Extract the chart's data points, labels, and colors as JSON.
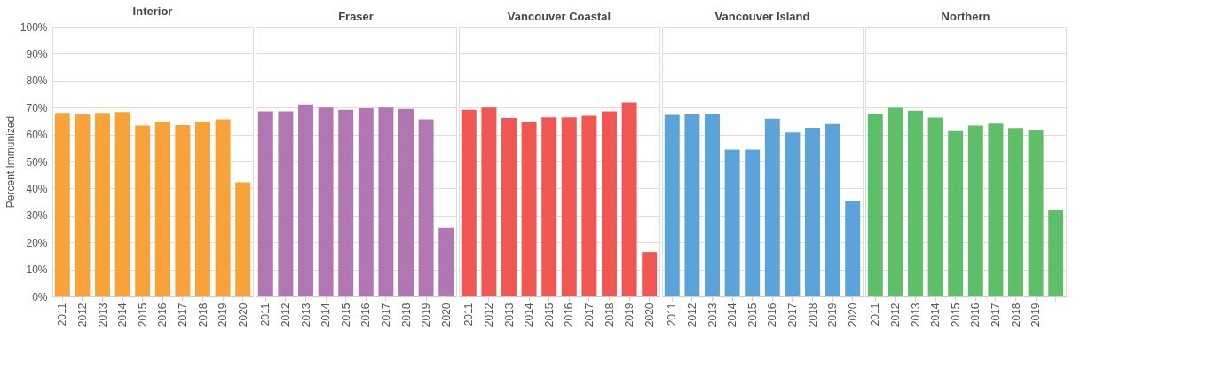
{
  "chart_data": [
    {
      "type": "bar",
      "title": "Interior",
      "ylabel": "Percent Immunized",
      "categories": [
        "2011",
        "2012",
        "2013",
        "2014",
        "2015",
        "2016",
        "2017",
        "2018",
        "2019",
        "2020"
      ],
      "values": [
        68.0,
        67.4,
        68.0,
        68.3,
        63.3,
        64.7,
        63.5,
        64.7,
        65.6,
        42.3
      ],
      "color": "#f8a23a",
      "ylim": [
        0,
        100
      ],
      "yticks": [
        {
          "value": 0,
          "label": "0%"
        },
        {
          "value": 10,
          "label": "10%"
        },
        {
          "value": 20,
          "label": "20%"
        },
        {
          "value": 30,
          "label": "30%"
        },
        {
          "value": 40,
          "label": "40%"
        },
        {
          "value": 50,
          "label": "50%"
        },
        {
          "value": 60,
          "label": "60%"
        },
        {
          "value": 70,
          "label": "70%"
        },
        {
          "value": 80,
          "label": "80%"
        },
        {
          "value": 90,
          "label": "90%"
        },
        {
          "value": 100,
          "label": "100%"
        }
      ],
      "grid": "y"
    },
    {
      "type": "bar",
      "title": "Fraser",
      "categories": [
        "2011",
        "2012",
        "2013",
        "2014",
        "2015",
        "2016",
        "2017",
        "2018",
        "2019",
        "2020"
      ],
      "values": [
        68.6,
        68.6,
        71.1,
        70.0,
        69.2,
        69.7,
        70.0,
        69.5,
        65.6,
        25.4
      ],
      "color": "#b077b2",
      "ylim": [
        0,
        100
      ],
      "yticks": [
        {
          "value": 0,
          "label": null
        },
        {
          "value": 10,
          "label": null
        },
        {
          "value": 20,
          "label": null
        },
        {
          "value": 30,
          "label": null
        },
        {
          "value": 40,
          "label": null
        },
        {
          "value": 50,
          "label": null
        },
        {
          "value": 60,
          "label": null
        },
        {
          "value": 70,
          "label": null
        },
        {
          "value": 80,
          "label": null
        },
        {
          "value": 90,
          "label": null
        },
        {
          "value": 100,
          "label": null
        }
      ],
      "grid": "y",
      "tick_labels": "x"
    },
    {
      "type": "bar",
      "title": "Vancouver Coastal",
      "categories": [
        "2011",
        "2012",
        "2013",
        "2014",
        "2015",
        "2016",
        "2017",
        "2018",
        "2019",
        "2020"
      ],
      "values": [
        69.2,
        70.0,
        66.1,
        64.7,
        66.4,
        66.4,
        66.9,
        68.6,
        71.9,
        16.4
      ],
      "color": "#f05752",
      "ylim": [
        0,
        100
      ],
      "yticks": [
        {
          "value": 0,
          "label": null
        },
        {
          "value": 10,
          "label": null
        },
        {
          "value": 20,
          "label": null
        },
        {
          "value": 30,
          "label": null
        },
        {
          "value": 40,
          "label": null
        },
        {
          "value": 50,
          "label": null
        },
        {
          "value": 60,
          "label": null
        },
        {
          "value": 70,
          "label": null
        },
        {
          "value": 80,
          "label": null
        },
        {
          "value": 90,
          "label": null
        },
        {
          "value": 100,
          "label": null
        }
      ],
      "grid": "y",
      "tick_labels": "x"
    },
    {
      "type": "bar",
      "title": "Vancouver Island",
      "categories": [
        "2011",
        "2012",
        "2013",
        "2014",
        "2015",
        "2016",
        "2017",
        "2018",
        "2019",
        "2020"
      ],
      "values": [
        67.3,
        67.4,
        67.4,
        54.4,
        54.4,
        65.9,
        60.8,
        62.5,
        63.9,
        35.4
      ],
      "color": "#5ba3d9",
      "ylim": [
        0,
        100
      ],
      "yticks": [
        {
          "value": 0,
          "label": null
        },
        {
          "value": 10,
          "label": null
        },
        {
          "value": 20,
          "label": null
        },
        {
          "value": 30,
          "label": null
        },
        {
          "value": 40,
          "label": null
        },
        {
          "value": 50,
          "label": null
        },
        {
          "value": 60,
          "label": null
        },
        {
          "value": 70,
          "label": null
        },
        {
          "value": 80,
          "label": null
        },
        {
          "value": 90,
          "label": null
        },
        {
          "value": 100,
          "label": null
        }
      ],
      "grid": "y",
      "tick_labels": "x"
    },
    {
      "type": "bar",
      "title": "Northern",
      "categories": [
        "2011",
        "2012",
        "2013",
        "2014",
        "2015",
        "2016",
        "2017",
        "2018",
        "2019",
        null
      ],
      "values": [
        67.7,
        69.9,
        68.8,
        66.3,
        61.3,
        63.3,
        64.1,
        62.4,
        61.6,
        31.9
      ],
      "color": "#5fbf68",
      "ylim": [
        0,
        100
      ],
      "yticks": [
        {
          "value": 0,
          "label": null
        },
        {
          "value": 10,
          "label": null
        },
        {
          "value": 20,
          "label": null
        },
        {
          "value": 30,
          "label": null
        },
        {
          "value": 40,
          "label": null
        },
        {
          "value": 50,
          "label": null
        },
        {
          "value": 60,
          "label": null
        },
        {
          "value": 70,
          "label": null
        },
        {
          "value": 80,
          "label": null
        },
        {
          "value": 90,
          "label": null
        },
        {
          "value": 100,
          "label": null
        }
      ],
      "grid": "y",
      "tick_labels": "x"
    }
  ]
}
